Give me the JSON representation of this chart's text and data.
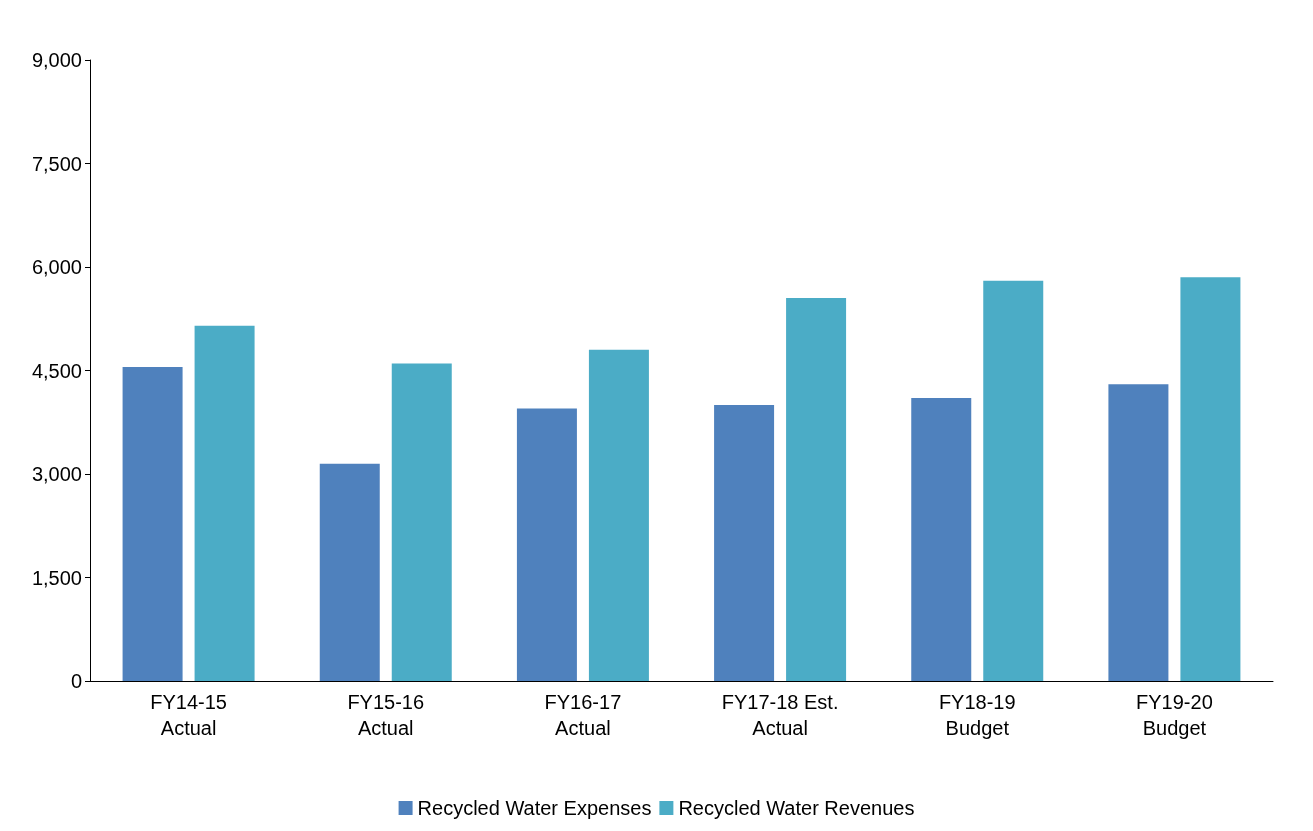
{
  "chart_data": {
    "type": "bar",
    "categories": [
      "FY14-15\nActual",
      "FY15-16\nActual",
      "FY16-17\nActual",
      "FY17-18 Est.\nActual",
      "FY18-19\nBudget",
      "FY19-20\nBudget"
    ],
    "series": [
      {
        "name": "Recycled Water Expenses",
        "color": "#4f81bd",
        "values": [
          4550,
          3150,
          3950,
          4000,
          4100,
          4300
        ]
      },
      {
        "name": "Recycled Water Revenues",
        "color": "#4bacc6",
        "values": [
          5150,
          4600,
          4800,
          5550,
          5800,
          5850
        ]
      }
    ],
    "ylim": [
      0,
      9000
    ],
    "yticks": [
      {
        "value": 0,
        "label": "0"
      },
      {
        "value": 1500,
        "label": "1,500"
      },
      {
        "value": 3000,
        "label": "3,000"
      },
      {
        "value": 4500,
        "label": "4,500"
      },
      {
        "value": 6000,
        "label": "6,000"
      },
      {
        "value": 7500,
        "label": "7,500"
      },
      {
        "value": 9000,
        "label": "9,000"
      }
    ],
    "grid": false,
    "legend": "bottom"
  }
}
